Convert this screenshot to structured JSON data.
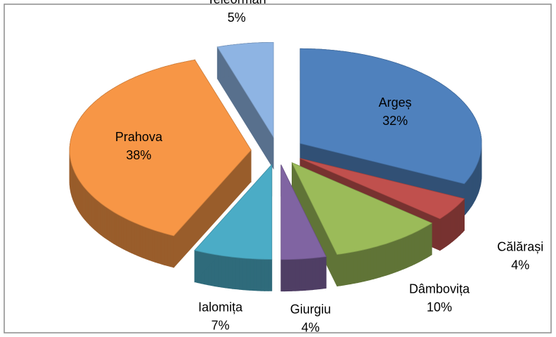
{
  "chart_data": {
    "type": "pie",
    "categories": [
      "Argeș",
      "Călărași",
      "Dâmbovița",
      "Giurgiu",
      "Ialomița",
      "Prahova",
      "Teleorman"
    ],
    "values": [
      32,
      4,
      10,
      4,
      7,
      38,
      5
    ],
    "value_labels": [
      "32%",
      "4%",
      "10%",
      "4%",
      "7%",
      "38%",
      "5%"
    ],
    "colors": [
      "#4f81bd",
      "#c0504d",
      "#9bbb59",
      "#8064a2",
      "#4bacc6",
      "#f79646",
      "#8eb4e3"
    ]
  }
}
